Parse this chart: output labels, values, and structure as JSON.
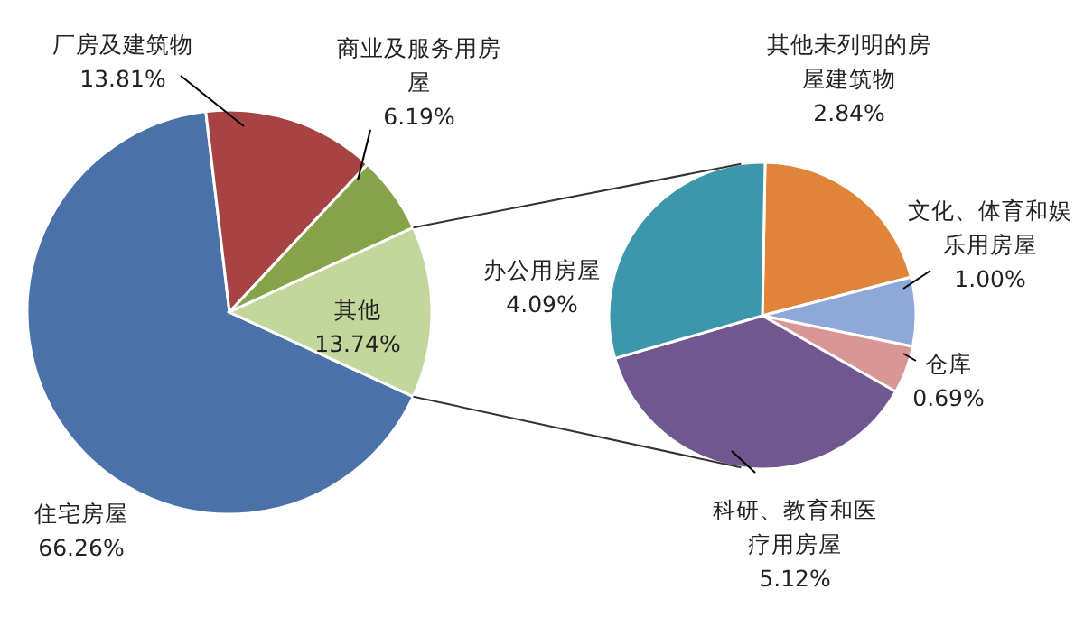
{
  "chart_data": [
    {
      "type": "pie",
      "categories": [
        "住宅房屋",
        "厂房及建筑物",
        "商业及服务用房屋",
        "其他"
      ],
      "values": [
        66.26,
        13.81,
        6.19,
        13.74
      ],
      "value_labels": [
        "66.26%",
        "13.81%",
        "6.19%",
        "13.74%"
      ],
      "colors": [
        "#4a72a8",
        "#a84343",
        "#86a34a",
        "#c3d69b"
      ]
    },
    {
      "type": "pie",
      "categories": [
        "其他未列明的房屋建筑物",
        "文化、体育和娱乐用房屋",
        "仓库",
        "科研、教育和医疗用房屋",
        "办公用房屋"
      ],
      "values": [
        2.84,
        1.0,
        0.69,
        5.12,
        4.09
      ],
      "value_labels": [
        "2.84%",
        "1.00%",
        "0.69%",
        "5.12%",
        "4.09%"
      ],
      "colors": [
        "#e0843a",
        "#8ea8d8",
        "#d99694",
        "#70578f",
        "#3c97ad"
      ]
    }
  ]
}
